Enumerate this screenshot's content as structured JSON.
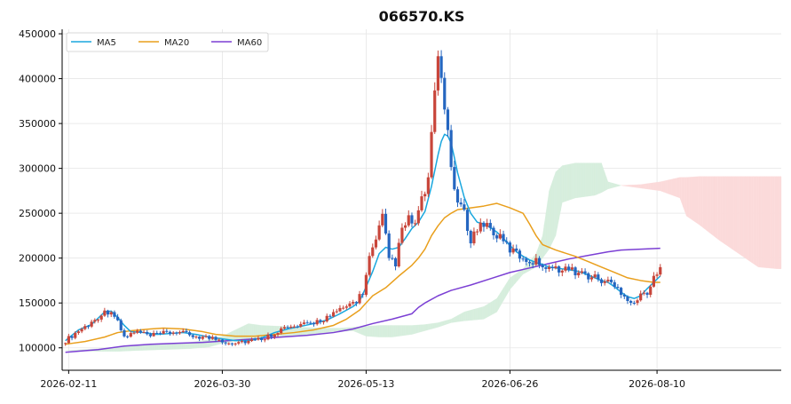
{
  "chart_data": {
    "type": "candlestick",
    "title": "066570.KS",
    "xlabel": "",
    "ylabel": "",
    "ylim": [
      75000,
      455000
    ],
    "yticks": [
      100000,
      150000,
      200000,
      250000,
      300000,
      350000,
      400000,
      450000
    ],
    "ytick_labels": [
      "100000",
      "150000",
      "200000",
      "250000",
      "300000",
      "350000",
      "400000",
      "450000"
    ],
    "x_start_date": "2026-02-10",
    "x_end_day": 219,
    "xticks": [
      {
        "day": 1,
        "label": "2026-02-11"
      },
      {
        "day": 48,
        "label": "2026-03-30"
      },
      {
        "day": 92,
        "label": "2026-05-13"
      },
      {
        "day": 136,
        "label": "2026-06-26"
      },
      {
        "day": 181,
        "label": "2026-08-10"
      }
    ],
    "grid": true,
    "legend": {
      "position": "top-left",
      "entries": [
        "MA5",
        "MA20",
        "MA60"
      ]
    },
    "colors": {
      "up": "#c8453a",
      "down": "#2566c0",
      "ma5": "#1aa7de",
      "ma20": "#e99f1c",
      "ma60": "#7b3fd4",
      "cloud_bull": "#d6eedd",
      "cloud_bear": "#fbdada"
    },
    "closes": [
      [
        0,
        108000
      ],
      [
        4,
        119000
      ],
      [
        8,
        128000
      ],
      [
        11,
        138000
      ],
      [
        14,
        142000
      ],
      [
        16,
        128000
      ],
      [
        18,
        112000
      ],
      [
        22,
        118000
      ],
      [
        26,
        113000
      ],
      [
        30,
        116000
      ],
      [
        34,
        118000
      ],
      [
        38,
        114000
      ],
      [
        42,
        112000
      ],
      [
        46,
        110000
      ],
      [
        50,
        106000
      ],
      [
        54,
        107000
      ],
      [
        58,
        108000
      ],
      [
        62,
        113000
      ],
      [
        66,
        121000
      ],
      [
        70,
        123000
      ],
      [
        74,
        126000
      ],
      [
        78,
        131000
      ],
      [
        82,
        137000
      ],
      [
        86,
        146000
      ],
      [
        89,
        153000
      ],
      [
        91,
        162000
      ],
      [
        93,
        200000
      ],
      [
        95,
        218000
      ],
      [
        97,
        245000
      ],
      [
        99,
        200000
      ],
      [
        101,
        195000
      ],
      [
        103,
        230000
      ],
      [
        105,
        243000
      ],
      [
        107,
        238000
      ],
      [
        109,
        263000
      ],
      [
        111,
        288000
      ],
      [
        113,
        378000
      ],
      [
        114,
        425000
      ],
      [
        115,
        400000
      ],
      [
        116,
        365000
      ],
      [
        117,
        350000
      ],
      [
        118,
        300000
      ],
      [
        119,
        270000
      ],
      [
        120,
        265000
      ],
      [
        122,
        248000
      ],
      [
        124,
        222000
      ],
      [
        126,
        232000
      ],
      [
        128,
        240000
      ],
      [
        130,
        233000
      ],
      [
        132,
        225000
      ],
      [
        134,
        218000
      ],
      [
        136,
        210000
      ],
      [
        138,
        205000
      ],
      [
        140,
        200000
      ],
      [
        142,
        197000
      ],
      [
        144,
        196000
      ],
      [
        146,
        193000
      ],
      [
        148,
        191000
      ],
      [
        150,
        187000
      ],
      [
        152,
        190000
      ],
      [
        154,
        187000
      ],
      [
        156,
        185000
      ],
      [
        158,
        183000
      ],
      [
        160,
        180000
      ],
      [
        162,
        178000
      ],
      [
        164,
        175000
      ],
      [
        166,
        174000
      ],
      [
        168,
        168000
      ],
      [
        170,
        163000
      ],
      [
        172,
        155000
      ],
      [
        174,
        150000
      ],
      [
        176,
        158000
      ],
      [
        178,
        163000
      ],
      [
        180,
        176000
      ],
      [
        182,
        188000
      ]
    ],
    "ma5": [
      [
        0,
        108000
      ],
      [
        4,
        120000
      ],
      [
        8,
        126000
      ],
      [
        10,
        133000
      ],
      [
        12,
        140000
      ],
      [
        14,
        141000
      ],
      [
        16,
        134000
      ],
      [
        18,
        125000
      ],
      [
        20,
        118000
      ],
      [
        24,
        117000
      ],
      [
        28,
        115000
      ],
      [
        32,
        116000
      ],
      [
        36,
        117000
      ],
      [
        40,
        115000
      ],
      [
        44,
        112000
      ],
      [
        48,
        110000
      ],
      [
        52,
        108000
      ],
      [
        56,
        108000
      ],
      [
        60,
        111000
      ],
      [
        64,
        117000
      ],
      [
        68,
        121000
      ],
      [
        72,
        124000
      ],
      [
        76,
        127000
      ],
      [
        80,
        131000
      ],
      [
        84,
        138000
      ],
      [
        88,
        146000
      ],
      [
        90,
        152000
      ],
      [
        92,
        168000
      ],
      [
        94,
        185000
      ],
      [
        96,
        205000
      ],
      [
        98,
        212000
      ],
      [
        100,
        210000
      ],
      [
        102,
        212000
      ],
      [
        104,
        222000
      ],
      [
        106,
        233000
      ],
      [
        108,
        240000
      ],
      [
        110,
        252000
      ],
      [
        112,
        280000
      ],
      [
        114,
        315000
      ],
      [
        115,
        330000
      ],
      [
        116,
        338000
      ],
      [
        117,
        336000
      ],
      [
        118,
        328000
      ],
      [
        119,
        312000
      ],
      [
        120,
        295000
      ],
      [
        122,
        268000
      ],
      [
        124,
        250000
      ],
      [
        126,
        240000
      ],
      [
        128,
        238000
      ],
      [
        130,
        234000
      ],
      [
        132,
        229000
      ],
      [
        134,
        222000
      ],
      [
        136,
        214000
      ],
      [
        138,
        207000
      ],
      [
        140,
        202000
      ],
      [
        142,
        198000
      ],
      [
        144,
        195000
      ],
      [
        146,
        193000
      ],
      [
        148,
        190000
      ],
      [
        150,
        189000
      ],
      [
        152,
        188000
      ],
      [
        154,
        187000
      ],
      [
        156,
        186000
      ],
      [
        158,
        184000
      ],
      [
        160,
        181000
      ],
      [
        162,
        178000
      ],
      [
        164,
        175000
      ],
      [
        166,
        173000
      ],
      [
        168,
        168000
      ],
      [
        170,
        162000
      ],
      [
        172,
        157000
      ],
      [
        174,
        155000
      ],
      [
        176,
        158000
      ],
      [
        178,
        166000
      ],
      [
        180,
        173000
      ],
      [
        182,
        180000
      ]
    ],
    "ma20": [
      [
        0,
        104000
      ],
      [
        6,
        107000
      ],
      [
        12,
        112000
      ],
      [
        16,
        117000
      ],
      [
        20,
        119000
      ],
      [
        26,
        121000
      ],
      [
        30,
        122000
      ],
      [
        36,
        121000
      ],
      [
        42,
        118000
      ],
      [
        46,
        115000
      ],
      [
        52,
        113000
      ],
      [
        58,
        113000
      ],
      [
        64,
        115000
      ],
      [
        70,
        117000
      ],
      [
        76,
        120000
      ],
      [
        82,
        125000
      ],
      [
        86,
        132000
      ],
      [
        90,
        142000
      ],
      [
        94,
        158000
      ],
      [
        98,
        167000
      ],
      [
        102,
        180000
      ],
      [
        106,
        192000
      ],
      [
        108,
        200000
      ],
      [
        110,
        210000
      ],
      [
        112,
        225000
      ],
      [
        114,
        236000
      ],
      [
        116,
        245000
      ],
      [
        118,
        250000
      ],
      [
        120,
        254000
      ],
      [
        124,
        256000
      ],
      [
        128,
        258000
      ],
      [
        132,
        261000
      ],
      [
        136,
        256000
      ],
      [
        140,
        250000
      ],
      [
        142,
        238000
      ],
      [
        144,
        225000
      ],
      [
        146,
        215000
      ],
      [
        150,
        209000
      ],
      [
        156,
        202000
      ],
      [
        160,
        196000
      ],
      [
        164,
        190000
      ],
      [
        168,
        184000
      ],
      [
        172,
        178000
      ],
      [
        176,
        175000
      ],
      [
        180,
        173000
      ],
      [
        182,
        173000
      ]
    ],
    "ma60": [
      [
        0,
        95000
      ],
      [
        10,
        98000
      ],
      [
        18,
        102000
      ],
      [
        26,
        104000
      ],
      [
        34,
        105000
      ],
      [
        42,
        106000
      ],
      [
        50,
        108000
      ],
      [
        58,
        110000
      ],
      [
        66,
        112000
      ],
      [
        74,
        114000
      ],
      [
        82,
        117000
      ],
      [
        88,
        121000
      ],
      [
        94,
        127000
      ],
      [
        100,
        132000
      ],
      [
        106,
        138000
      ],
      [
        108,
        145000
      ],
      [
        110,
        150000
      ],
      [
        114,
        158000
      ],
      [
        118,
        164000
      ],
      [
        124,
        170000
      ],
      [
        130,
        177000
      ],
      [
        136,
        184000
      ],
      [
        142,
        189000
      ],
      [
        148,
        194000
      ],
      [
        154,
        199000
      ],
      [
        160,
        203000
      ],
      [
        166,
        207000
      ],
      [
        170,
        209000
      ],
      [
        176,
        210000
      ],
      [
        182,
        211000
      ]
    ],
    "cloud_upper": [
      [
        0,
        97000
      ],
      [
        10,
        99000
      ],
      [
        16,
        101000
      ],
      [
        22,
        103000
      ],
      [
        30,
        104000
      ],
      [
        38,
        106000
      ],
      [
        44,
        109000
      ],
      [
        48,
        113000
      ],
      [
        52,
        120000
      ],
      [
        56,
        127000
      ],
      [
        60,
        125000
      ],
      [
        66,
        124000
      ],
      [
        72,
        123000
      ],
      [
        78,
        122000
      ],
      [
        84,
        122000
      ],
      [
        88,
        123000
      ],
      [
        92,
        124000
      ],
      [
        96,
        125000
      ],
      [
        100,
        125000
      ],
      [
        106,
        125000
      ],
      [
        110,
        126000
      ],
      [
        114,
        128000
      ],
      [
        118,
        132000
      ],
      [
        122,
        140000
      ],
      [
        128,
        146000
      ],
      [
        132,
        155000
      ],
      [
        136,
        178000
      ],
      [
        140,
        188000
      ],
      [
        144,
        205000
      ],
      [
        146,
        225000
      ],
      [
        148,
        275000
      ],
      [
        150,
        296000
      ],
      [
        152,
        303000
      ],
      [
        156,
        306000
      ],
      [
        162,
        306000
      ],
      [
        164,
        306000
      ],
      [
        166,
        285000
      ],
      [
        170,
        281000
      ],
      [
        176,
        278000
      ],
      [
        182,
        275000
      ],
      [
        188,
        267000
      ],
      [
        190,
        247000
      ],
      [
        194,
        237000
      ],
      [
        200,
        220000
      ],
      [
        208,
        200000
      ],
      [
        212,
        190000
      ],
      [
        218,
        188000
      ],
      [
        220,
        188000
      ]
    ],
    "cloud_lower": [
      [
        0,
        97000
      ],
      [
        10,
        96000
      ],
      [
        16,
        96000
      ],
      [
        22,
        97000
      ],
      [
        30,
        98000
      ],
      [
        38,
        99000
      ],
      [
        44,
        101000
      ],
      [
        48,
        105000
      ],
      [
        52,
        107000
      ],
      [
        56,
        109000
      ],
      [
        60,
        110000
      ],
      [
        66,
        112000
      ],
      [
        72,
        114000
      ],
      [
        78,
        116000
      ],
      [
        84,
        118000
      ],
      [
        88,
        119000
      ],
      [
        92,
        113000
      ],
      [
        96,
        112000
      ],
      [
        100,
        112000
      ],
      [
        106,
        115000
      ],
      [
        110,
        119000
      ],
      [
        114,
        123000
      ],
      [
        118,
        128000
      ],
      [
        122,
        130000
      ],
      [
        128,
        132000
      ],
      [
        132,
        140000
      ],
      [
        136,
        165000
      ],
      [
        140,
        182000
      ],
      [
        144,
        190000
      ],
      [
        146,
        200000
      ],
      [
        148,
        210000
      ],
      [
        150,
        225000
      ],
      [
        152,
        262000
      ],
      [
        156,
        267000
      ],
      [
        162,
        270000
      ],
      [
        164,
        273000
      ],
      [
        166,
        277000
      ],
      [
        170,
        281000
      ],
      [
        176,
        282000
      ],
      [
        182,
        285000
      ],
      [
        188,
        290000
      ],
      [
        190,
        290000
      ],
      [
        194,
        291000
      ],
      [
        200,
        291000
      ],
      [
        208,
        291000
      ],
      [
        212,
        291000
      ],
      [
        218,
        291000
      ],
      [
        220,
        291000
      ]
    ]
  }
}
